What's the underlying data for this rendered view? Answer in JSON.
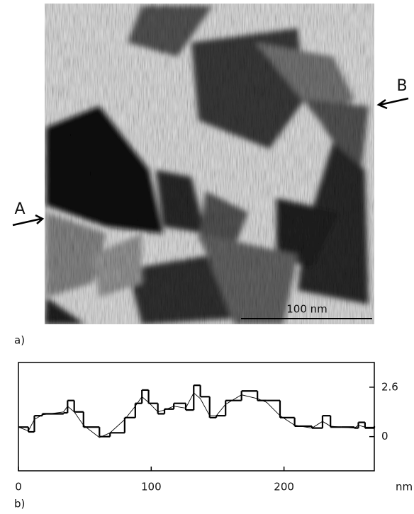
{
  "panel_a": {
    "panel_label": "a)",
    "marker_left": "A",
    "marker_right": "B",
    "scale_bar": "100 nm"
  },
  "chart_data": {
    "type": "line",
    "panel_label": "b)",
    "xlabel": "nm",
    "x": [
      0,
      7.5,
      12,
      18,
      34,
      37,
      42,
      49,
      61,
      69,
      80,
      88,
      93,
      98,
      105,
      110,
      117,
      126,
      132,
      137,
      144,
      149,
      156,
      168,
      180,
      187,
      197,
      208,
      221,
      229,
      235,
      243,
      253,
      256,
      261,
      268
    ],
    "series": [
      {
        "color": "#000000",
        "step": true,
        "values": [
          0.5,
          0.25,
          1.1,
          1.2,
          1.25,
          1.9,
          1.3,
          0.5,
          0.0,
          0.2,
          1.0,
          1.75,
          2.45,
          1.75,
          1.2,
          1.45,
          1.75,
          1.4,
          2.7,
          2.1,
          1.0,
          1.1,
          1.9,
          2.4,
          1.9,
          1.9,
          1.0,
          0.55,
          0.45,
          1.1,
          0.5,
          0.5,
          0.45,
          0.75,
          0.45,
          0.55
        ]
      },
      {
        "color": "#000000",
        "step": false,
        "values": [
          0.5,
          0.3,
          0.9,
          1.15,
          1.3,
          1.6,
          1.3,
          0.6,
          -0.05,
          0.2,
          0.9,
          1.6,
          2.1,
          1.8,
          1.3,
          1.4,
          1.6,
          1.5,
          2.3,
          2.0,
          1.1,
          1.1,
          1.7,
          2.2,
          2.0,
          1.8,
          1.1,
          0.6,
          0.45,
          0.8,
          0.55,
          0.5,
          0.45,
          0.6,
          0.5,
          0.5
        ]
      }
    ],
    "xlim": [
      0,
      268
    ],
    "ylim": [
      -1.8,
      3.9
    ],
    "xticks": [
      0,
      100,
      200
    ],
    "yticks": [
      2.6,
      0
    ]
  }
}
